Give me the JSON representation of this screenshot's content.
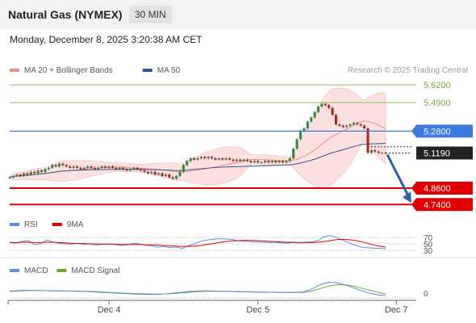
{
  "header": {
    "title": "Natural Gas (NYMEX)",
    "timeframe": "30 MIN",
    "datetime": "Monday, December 8, 2025 3:20:38 AM CET"
  },
  "chart_data": [
    {
      "type": "candlestick",
      "panel": "price",
      "legend": [
        {
          "name": "MA 20 + Bollinger Bands",
          "color": "#f28b82"
        },
        {
          "name": "MA 50",
          "color": "#2f5597"
        }
      ],
      "watermark": "Research © 2025 Trading Central",
      "ylim": [
        4.7,
        5.68
      ],
      "levels": [
        {
          "value": 5.62,
          "label": "5.6200",
          "kind": "resistance-light",
          "color": "#8fbf5a"
        },
        {
          "value": 5.49,
          "label": "5.4900",
          "kind": "resistance-light",
          "color": "#8fbf5a"
        },
        {
          "value": 5.28,
          "label": "5.2800",
          "kind": "pivot",
          "color": "#3d7be0"
        },
        {
          "value": 5.119,
          "label": "5.1190",
          "kind": "last-price",
          "color": "#222222"
        },
        {
          "value": 4.86,
          "label": "4.8600",
          "kind": "support",
          "color": "#e00000"
        },
        {
          "value": 4.74,
          "label": "4.7400",
          "kind": "support",
          "color": "#e00000"
        }
      ],
      "closes": [
        4.94,
        4.95,
        4.96,
        4.95,
        4.97,
        4.96,
        4.98,
        4.97,
        4.99,
        4.98,
        5.0,
        5.01,
        5.03,
        5.02,
        5.04,
        5.03,
        5.02,
        5.01,
        5.02,
        5.01,
        5.0,
        5.01,
        5.02,
        5.01,
        5.0,
        5.01,
        5.02,
        5.01,
        5.02,
        5.01,
        5.0,
        5.01,
        5.0,
        4.99,
        5.0,
        5.01,
        5.0,
        4.99,
        4.98,
        4.97,
        4.98,
        4.96,
        4.97,
        4.95,
        4.96,
        4.94,
        4.93,
        4.95,
        4.98,
        5.03,
        5.06,
        5.08,
        5.07,
        5.08,
        5.09,
        5.08,
        5.09,
        5.08,
        5.07,
        5.08,
        5.07,
        5.08,
        5.07,
        5.06,
        5.07,
        5.06,
        5.07,
        5.06,
        5.05,
        5.06,
        5.05,
        5.05,
        5.06,
        5.05,
        5.06,
        5.05,
        5.06,
        5.05,
        5.06,
        5.08,
        5.15,
        5.22,
        5.28,
        5.3,
        5.35,
        5.38,
        5.42,
        5.46,
        5.48,
        5.47,
        5.45,
        5.4,
        5.33,
        5.32,
        5.31,
        5.32,
        5.33,
        5.34,
        5.33,
        5.32,
        5.3,
        5.12,
        5.14,
        5.13,
        5.12,
        5.12,
        5.119
      ],
      "arrow_target": 4.74,
      "x_ticks": [
        {
          "label": "Dec 4",
          "index": 28
        },
        {
          "label": "Dec 5",
          "index": 70
        },
        {
          "label": "Dec 7",
          "index": 109
        }
      ]
    },
    {
      "type": "line",
      "panel": "rsi",
      "series": [
        {
          "name": "RSI",
          "color": "#5b8fe0"
        },
        {
          "name": "9MA",
          "color": "#e00000"
        }
      ],
      "ylim": [
        20,
        80
      ],
      "levels": [
        70,
        50,
        30
      ],
      "level_labels": [
        "70",
        "50",
        "30"
      ],
      "rsi": [
        55,
        52,
        58,
        60,
        48,
        50,
        62,
        56,
        52,
        50,
        49,
        52,
        48,
        50,
        46,
        49,
        50,
        48,
        45,
        47,
        52,
        50,
        46,
        44,
        40,
        42,
        38,
        40,
        36,
        44,
        50,
        58,
        62,
        64,
        66,
        65,
        64,
        60,
        58,
        57,
        56,
        55,
        54,
        55,
        53,
        52,
        54,
        53,
        55,
        56,
        60,
        72,
        76,
        70,
        62,
        54,
        46,
        40,
        38,
        37,
        36,
        35
      ],
      "ma9": [
        54,
        54,
        55,
        55,
        54,
        54,
        55,
        55,
        54,
        53,
        52,
        51,
        51,
        50,
        50,
        49,
        49,
        49,
        48,
        48,
        48,
        48,
        47,
        47,
        46,
        45,
        44,
        43,
        42,
        42,
        43,
        45,
        48,
        51,
        54,
        57,
        59,
        60,
        61,
        61,
        60,
        59,
        58,
        57,
        56,
        55,
        55,
        54,
        54,
        54,
        55,
        57,
        60,
        63,
        64,
        63,
        61,
        57,
        52,
        47,
        43,
        40
      ]
    },
    {
      "type": "line",
      "panel": "macd",
      "series": [
        {
          "name": "MACD",
          "color": "#5b8fe0"
        },
        {
          "name": "MACD Signal",
          "color": "#6aaa2b"
        }
      ],
      "zero_label": "0",
      "macd": [
        0.01,
        0.012,
        0.014,
        0.013,
        0.012,
        0.011,
        0.01,
        0.01,
        0.009,
        0.008,
        0.006,
        0.004,
        0.002,
        0.0,
        -0.002,
        -0.004,
        -0.005,
        -0.006,
        -0.006,
        -0.004,
        0.0,
        0.004,
        0.008,
        0.01,
        0.011,
        0.01,
        0.009,
        0.008,
        0.007,
        0.006,
        0.005,
        0.004,
        0.004,
        0.003,
        0.003,
        0.004,
        0.006,
        0.02,
        0.04,
        0.052,
        0.05,
        0.04,
        0.026,
        0.012,
        0.0,
        -0.008,
        -0.012
      ],
      "signal": [
        0.008,
        0.01,
        0.012,
        0.012,
        0.012,
        0.011,
        0.011,
        0.01,
        0.01,
        0.009,
        0.008,
        0.006,
        0.004,
        0.002,
        0.0,
        -0.002,
        -0.003,
        -0.004,
        -0.005,
        -0.004,
        -0.002,
        0.001,
        0.004,
        0.007,
        0.009,
        0.009,
        0.009,
        0.008,
        0.008,
        0.007,
        0.006,
        0.005,
        0.004,
        0.004,
        0.003,
        0.003,
        0.004,
        0.01,
        0.022,
        0.034,
        0.04,
        0.04,
        0.034,
        0.024,
        0.014,
        0.004,
        -0.004
      ]
    }
  ]
}
